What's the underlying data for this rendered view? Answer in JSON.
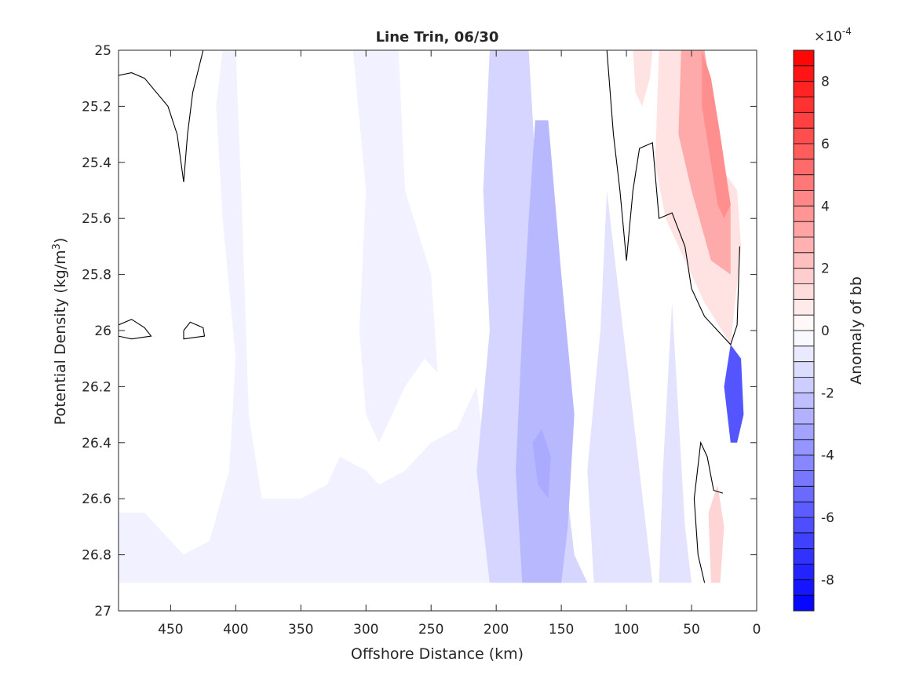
{
  "chart_data": {
    "type": "contour",
    "title": "Line Trin, 06/30",
    "xlabel": "Offshore Distance (km)",
    "ylabel_main": "Potential Density (kg/m",
    "ylabel_sup": "3",
    "ylabel_close": ")",
    "x_reversed": true,
    "xlim": [
      490,
      0
    ],
    "ylim": [
      25,
      27
    ],
    "y_reversed": true,
    "x_ticks": [
      "450",
      "400",
      "350",
      "300",
      "250",
      "200",
      "150",
      "100",
      "50",
      "0"
    ],
    "x_tick_values": [
      450,
      400,
      350,
      300,
      250,
      200,
      150,
      100,
      50,
      0
    ],
    "y_ticks": [
      "25",
      "25.2",
      "25.4",
      "25.6",
      "25.8",
      "26",
      "26.2",
      "26.4",
      "26.6",
      "26.8",
      "27"
    ],
    "y_tick_values": [
      25,
      25.2,
      25.4,
      25.6,
      25.8,
      26,
      26.2,
      26.4,
      26.6,
      26.8,
      27
    ],
    "colorbar": {
      "label": "Anomaly of bb",
      "exponent_prefix": "×10",
      "exponent": "-4",
      "range": [
        -9,
        9
      ],
      "ticks": [
        "8",
        "6",
        "4",
        "2",
        "0",
        "-2",
        "-4",
        "-6",
        "-8"
      ],
      "tick_values": [
        8,
        6,
        4,
        2,
        0,
        -2,
        -4,
        -6,
        -8
      ],
      "levels": 36,
      "color_low": "#0000ff",
      "color_mid": "#ffffff",
      "color_high": "#ff0000"
    },
    "regions": [
      {
        "name": "weak-negative-band-west",
        "level": -0.5,
        "points": [
          [
            490,
            26.9
          ],
          [
            490,
            26.65
          ],
          [
            470,
            26.65
          ],
          [
            450,
            26.75
          ],
          [
            440,
            26.8
          ],
          [
            420,
            26.75
          ],
          [
            405,
            26.5
          ],
          [
            400,
            26.1
          ],
          [
            410,
            25.6
          ],
          [
            415,
            25.2
          ],
          [
            410,
            25
          ],
          [
            400,
            25
          ],
          [
            395,
            25.6
          ],
          [
            390,
            26.3
          ],
          [
            380,
            26.6
          ],
          [
            350,
            26.6
          ],
          [
            330,
            26.55
          ],
          [
            320,
            26.45
          ],
          [
            300,
            26.5
          ],
          [
            290,
            26.55
          ],
          [
            270,
            26.5
          ],
          [
            250,
            26.4
          ],
          [
            230,
            26.35
          ],
          [
            215,
            26.2
          ],
          [
            205,
            26.6
          ],
          [
            200,
            26.9
          ]
        ]
      },
      {
        "name": "weak-negative-column-300",
        "level": -0.5,
        "points": [
          [
            310,
            25
          ],
          [
            300,
            25.5
          ],
          [
            305,
            26.0
          ],
          [
            300,
            26.3
          ],
          [
            290,
            26.4
          ],
          [
            270,
            26.2
          ],
          [
            255,
            26.1
          ],
          [
            245,
            26.15
          ],
          [
            250,
            25.8
          ],
          [
            270,
            25.5
          ],
          [
            275,
            25.0
          ]
        ]
      },
      {
        "name": "negative-column-central",
        "level": -1.5,
        "points": [
          [
            205,
            26.9
          ],
          [
            215,
            26.5
          ],
          [
            205,
            26.0
          ],
          [
            210,
            25.5
          ],
          [
            205,
            25.0
          ],
          [
            175,
            25
          ],
          [
            170,
            25.4
          ],
          [
            165,
            26.0
          ],
          [
            150,
            26.4
          ],
          [
            140,
            26.8
          ],
          [
            130,
            26.9
          ]
        ]
      },
      {
        "name": "negative-core-160",
        "level": -2.5,
        "points": [
          [
            180,
            26.9
          ],
          [
            185,
            26.5
          ],
          [
            180,
            26.0
          ],
          [
            175,
            25.6
          ],
          [
            170,
            25.25
          ],
          [
            160,
            25.25
          ],
          [
            150,
            25.8
          ],
          [
            140,
            26.3
          ],
          [
            145,
            26.7
          ],
          [
            150,
            26.9
          ]
        ]
      },
      {
        "name": "negative-deep-core",
        "level": -3.0,
        "points": [
          [
            168,
            26.55
          ],
          [
            172,
            26.4
          ],
          [
            165,
            26.35
          ],
          [
            158,
            26.45
          ],
          [
            160,
            26.6
          ]
        ]
      },
      {
        "name": "negative-band-east",
        "level": -1.0,
        "points": [
          [
            125,
            26.9
          ],
          [
            130,
            26.5
          ],
          [
            120,
            26.0
          ],
          [
            115,
            25.5
          ],
          [
            100,
            26.1
          ],
          [
            90,
            26.5
          ],
          [
            80,
            26.9
          ]
        ]
      },
      {
        "name": "negative-band-coastal",
        "level": -1.0,
        "points": [
          [
            75,
            26.9
          ],
          [
            72,
            26.5
          ],
          [
            65,
            25.9
          ],
          [
            60,
            26.3
          ],
          [
            55,
            26.7
          ],
          [
            50,
            26.9
          ]
        ]
      },
      {
        "name": "strong-negative-coastal",
        "level": -6.0,
        "points": [
          [
            20,
            26.4
          ],
          [
            25,
            26.2
          ],
          [
            20,
            26.05
          ],
          [
            12,
            26.1
          ],
          [
            10,
            26.3
          ],
          [
            15,
            26.4
          ]
        ]
      },
      {
        "name": "weak-positive-coastal",
        "level": 1.0,
        "points": [
          [
            75,
            25
          ],
          [
            78,
            25.4
          ],
          [
            70,
            25.6
          ],
          [
            55,
            25.75
          ],
          [
            40,
            25.9
          ],
          [
            20,
            26.05
          ],
          [
            12,
            25.7
          ],
          [
            15,
            25.5
          ],
          [
            30,
            25.4
          ],
          [
            40,
            25.0
          ]
        ]
      },
      {
        "name": "positive-coastal",
        "level": 3.0,
        "points": [
          [
            58,
            25
          ],
          [
            60,
            25.3
          ],
          [
            50,
            25.5
          ],
          [
            35,
            25.75
          ],
          [
            20,
            25.8
          ],
          [
            20,
            25.55
          ],
          [
            30,
            25.3
          ],
          [
            40,
            25.0
          ]
        ]
      },
      {
        "name": "positive-coastal-core",
        "level": 4.0,
        "points": [
          [
            42,
            25
          ],
          [
            42,
            25.2
          ],
          [
            30,
            25.55
          ],
          [
            25,
            25.6
          ],
          [
            20,
            25.55
          ],
          [
            28,
            25.3
          ],
          [
            35,
            25.1
          ]
        ]
      },
      {
        "name": "positive-pocket-deep",
        "level": 1.5,
        "points": [
          [
            35,
            26.9
          ],
          [
            37,
            26.65
          ],
          [
            30,
            26.55
          ],
          [
            25,
            26.7
          ],
          [
            28,
            26.9
          ]
        ]
      },
      {
        "name": "positive-pocket-100",
        "level": 1.0,
        "points": [
          [
            95,
            25
          ],
          [
            93,
            25.15
          ],
          [
            88,
            25.2
          ],
          [
            82,
            25.1
          ],
          [
            80,
            25.0
          ]
        ]
      }
    ],
    "zero_contours": [
      {
        "name": "zero-contour-west-top",
        "points": [
          [
            490,
            25.09
          ],
          [
            480,
            25.08
          ],
          [
            470,
            25.1
          ],
          [
            452,
            25.2
          ],
          [
            445,
            25.3
          ],
          [
            440,
            25.47
          ],
          [
            437,
            25.3
          ],
          [
            433,
            25.15
          ],
          [
            425,
            25
          ]
        ]
      },
      {
        "name": "zero-contour-loop-a",
        "points": [
          [
            490,
            25.98
          ],
          [
            480,
            25.96
          ],
          [
            470,
            25.99
          ],
          [
            465,
            26.02
          ],
          [
            480,
            26.03
          ],
          [
            490,
            26.02
          ],
          [
            490,
            25.98
          ]
        ]
      },
      {
        "name": "zero-contour-loop-b",
        "points": [
          [
            440,
            26.0
          ],
          [
            435,
            25.97
          ],
          [
            425,
            25.99
          ],
          [
            424,
            26.02
          ],
          [
            440,
            26.03
          ],
          [
            440,
            26.0
          ]
        ]
      },
      {
        "name": "zero-contour-east",
        "points": [
          [
            115,
            25
          ],
          [
            110,
            25.3
          ],
          [
            105,
            25.5
          ],
          [
            100,
            25.75
          ],
          [
            95,
            25.5
          ],
          [
            90,
            25.35
          ],
          [
            80,
            25.33
          ],
          [
            75,
            25.6
          ],
          [
            65,
            25.58
          ],
          [
            55,
            25.7
          ],
          [
            50,
            25.85
          ],
          [
            40,
            25.95
          ],
          [
            30,
            26.0
          ],
          [
            20,
            26.05
          ],
          [
            15,
            25.98
          ],
          [
            13,
            25.7
          ]
        ]
      },
      {
        "name": "zero-contour-deep-east",
        "points": [
          [
            40,
            26.9
          ],
          [
            45,
            26.8
          ],
          [
            48,
            26.6
          ],
          [
            43,
            26.4
          ],
          [
            38,
            26.45
          ],
          [
            33,
            26.57
          ],
          [
            26,
            26.58
          ]
        ]
      }
    ]
  }
}
